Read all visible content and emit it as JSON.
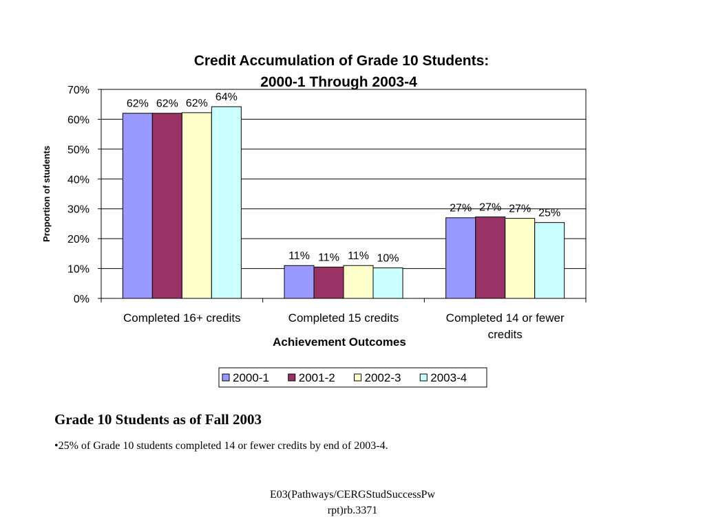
{
  "chart_data": {
    "type": "bar",
    "title": [
      "Credit Accumulation of Grade 10 Students:",
      "2000-1 Through 2003-4"
    ],
    "xlabel": "Achievement Outcomes",
    "ylabel": "Proportion of students",
    "ylim": [
      0,
      70
    ],
    "yticks": [
      "0%",
      "10%",
      "20%",
      "30%",
      "40%",
      "50%",
      "60%",
      "70%"
    ],
    "ytick_values": [
      0,
      10,
      20,
      30,
      40,
      50,
      60,
      70
    ],
    "grid": true,
    "legend_position": "bottom",
    "categories": [
      [
        "Completed 16+ credits"
      ],
      [
        "Completed 15 credits"
      ],
      [
        "Completed 14 or fewer",
        "credits"
      ]
    ],
    "series": [
      {
        "name": "2000-1",
        "color": "#9999ff",
        "values": [
          62,
          11,
          27
        ],
        "labels": [
          "62%",
          "11%",
          "27%"
        ]
      },
      {
        "name": "2001-2",
        "color": "#993366",
        "values": [
          62,
          10.5,
          27.3
        ],
        "labels": [
          "62%",
          "11%",
          "27%"
        ]
      },
      {
        "name": "2002-3",
        "color": "#ffffcc",
        "values": [
          62.2,
          11,
          26.8
        ],
        "labels": [
          "62%",
          "11%",
          "27%"
        ]
      },
      {
        "name": "2003-4",
        "color": "#ccffff",
        "values": [
          64.2,
          10.2,
          25.4
        ],
        "labels": [
          "64%",
          "10%",
          "25%"
        ]
      }
    ]
  },
  "notes": {
    "heading": "Grade 10 Students as of Fall 2003",
    "bullet": "•25% of Grade 10 students completed 14 or fewer credits by end of 2003-4."
  },
  "footer": {
    "line1": "E03(Pathways/CERGStudSuccessPw",
    "line2": "rpt)rb.3371"
  }
}
